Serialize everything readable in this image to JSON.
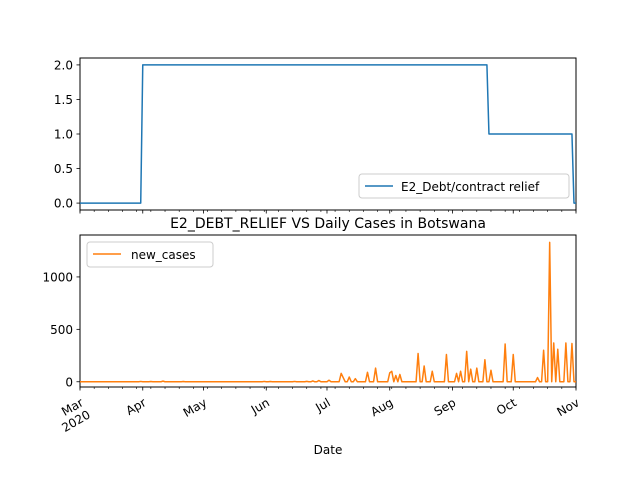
{
  "chart_data": [
    {
      "type": "line",
      "title": "",
      "xlabel": "",
      "ylabel": "",
      "ylim": [
        -0.1,
        2.1
      ],
      "yticks": [
        "0.0",
        "0.5",
        "1.0",
        "1.5",
        "2.0"
      ],
      "legend": "lower-right",
      "series": [
        {
          "name": "E2_Debt/contract relief",
          "color": "#1f77b4",
          "points": [
            [
              "2020-03-01",
              0
            ],
            [
              "2020-03-31",
              0
            ],
            [
              "2020-04-01",
              2
            ],
            [
              "2020-09-18",
              2
            ],
            [
              "2020-09-19",
              1
            ],
            [
              "2020-10-30",
              1
            ],
            [
              "2020-10-31",
              0
            ],
            [
              "2020-11-01",
              0
            ]
          ]
        }
      ]
    },
    {
      "type": "line",
      "title": "E2_DEBT_RELIEF VS Daily Cases in Botswana",
      "xlabel": "Date",
      "ylabel": "",
      "ylim": [
        -50,
        1400
      ],
      "yticks": [
        "0",
        "500",
        "1000"
      ],
      "legend": "upper-left",
      "xticks": [
        "Mar\n2020",
        "Apr",
        "May",
        "Jun",
        "Jul",
        "Aug",
        "Sep",
        "Oct",
        "Nov"
      ],
      "series": [
        {
          "name": "new_cases",
          "color": "#ff7f0e",
          "points": [
            [
              "2020-03-01",
              0
            ],
            [
              "2020-03-30",
              0
            ],
            [
              "2020-03-31",
              3
            ],
            [
              "2020-04-01",
              0
            ],
            [
              "2020-04-04",
              0
            ],
            [
              "2020-04-05",
              2
            ],
            [
              "2020-04-06",
              0
            ],
            [
              "2020-04-10",
              0
            ],
            [
              "2020-04-11",
              6
            ],
            [
              "2020-04-12",
              0
            ],
            [
              "2020-04-20",
              0
            ],
            [
              "2020-04-21",
              2
            ],
            [
              "2020-04-22",
              0
            ],
            [
              "2020-05-30",
              0
            ],
            [
              "2020-05-31",
              3
            ],
            [
              "2020-06-01",
              0
            ],
            [
              "2020-06-02",
              0
            ],
            [
              "2020-06-03",
              2
            ],
            [
              "2020-06-04",
              0
            ],
            [
              "2020-06-14",
              0
            ],
            [
              "2020-06-15",
              3
            ],
            [
              "2020-06-16",
              0
            ],
            [
              "2020-06-20",
              0
            ],
            [
              "2020-06-21",
              4
            ],
            [
              "2020-06-22",
              0
            ],
            [
              "2020-06-23",
              0
            ],
            [
              "2020-06-24",
              8
            ],
            [
              "2020-06-25",
              0
            ],
            [
              "2020-06-26",
              0
            ],
            [
              "2020-06-27",
              12
            ],
            [
              "2020-06-28",
              0
            ],
            [
              "2020-07-01",
              0
            ],
            [
              "2020-07-02",
              15
            ],
            [
              "2020-07-03",
              0
            ],
            [
              "2020-07-07",
              0
            ],
            [
              "2020-07-08",
              80
            ],
            [
              "2020-07-09",
              40
            ],
            [
              "2020-07-10",
              0
            ],
            [
              "2020-07-11",
              0
            ],
            [
              "2020-07-12",
              45
            ],
            [
              "2020-07-13",
              0
            ],
            [
              "2020-07-14",
              0
            ],
            [
              "2020-07-15",
              30
            ],
            [
              "2020-07-16",
              0
            ],
            [
              "2020-07-20",
              0
            ],
            [
              "2020-07-21",
              90
            ],
            [
              "2020-07-22",
              0
            ],
            [
              "2020-07-24",
              0
            ],
            [
              "2020-07-25",
              130
            ],
            [
              "2020-07-26",
              0
            ],
            [
              "2020-07-31",
              0
            ],
            [
              "2020-08-01",
              85
            ],
            [
              "2020-08-02",
              100
            ],
            [
              "2020-08-03",
              0
            ],
            [
              "2020-08-04",
              60
            ],
            [
              "2020-08-05",
              0
            ],
            [
              "2020-08-06",
              70
            ],
            [
              "2020-08-07",
              0
            ],
            [
              "2020-08-14",
              0
            ],
            [
              "2020-08-15",
              270
            ],
            [
              "2020-08-16",
              0
            ],
            [
              "2020-08-17",
              0
            ],
            [
              "2020-08-18",
              150
            ],
            [
              "2020-08-19",
              0
            ],
            [
              "2020-08-21",
              0
            ],
            [
              "2020-08-22",
              100
            ],
            [
              "2020-08-23",
              0
            ],
            [
              "2020-08-28",
              0
            ],
            [
              "2020-08-29",
              260
            ],
            [
              "2020-08-30",
              0
            ],
            [
              "2020-09-02",
              0
            ],
            [
              "2020-09-03",
              80
            ],
            [
              "2020-09-04",
              0
            ],
            [
              "2020-09-05",
              100
            ],
            [
              "2020-09-06",
              0
            ],
            [
              "2020-09-07",
              0
            ],
            [
              "2020-09-08",
              290
            ],
            [
              "2020-09-09",
              0
            ],
            [
              "2020-09-10",
              120
            ],
            [
              "2020-09-11",
              0
            ],
            [
              "2020-09-12",
              0
            ],
            [
              "2020-09-13",
              130
            ],
            [
              "2020-09-14",
              0
            ],
            [
              "2020-09-16",
              0
            ],
            [
              "2020-09-17",
              210
            ],
            [
              "2020-09-18",
              0
            ],
            [
              "2020-09-19",
              0
            ],
            [
              "2020-09-20",
              110
            ],
            [
              "2020-09-21",
              0
            ],
            [
              "2020-09-26",
              0
            ],
            [
              "2020-09-27",
              360
            ],
            [
              "2020-09-28",
              0
            ],
            [
              "2020-09-30",
              0
            ],
            [
              "2020-10-01",
              260
            ],
            [
              "2020-10-02",
              0
            ],
            [
              "2020-10-12",
              0
            ],
            [
              "2020-10-13",
              40
            ],
            [
              "2020-10-14",
              0
            ],
            [
              "2020-10-15",
              0
            ],
            [
              "2020-10-16",
              300
            ],
            [
              "2020-10-17",
              0
            ],
            [
              "2020-10-18",
              0
            ],
            [
              "2020-10-19",
              1330
            ],
            [
              "2020-10-20",
              0
            ],
            [
              "2020-10-21",
              370
            ],
            [
              "2020-10-22",
              0
            ],
            [
              "2020-10-23",
              310
            ],
            [
              "2020-10-24",
              0
            ],
            [
              "2020-10-26",
              0
            ],
            [
              "2020-10-27",
              370
            ],
            [
              "2020-10-28",
              0
            ],
            [
              "2020-10-29",
              0
            ],
            [
              "2020-10-30",
              365
            ],
            [
              "2020-10-31",
              0
            ],
            [
              "2020-11-01",
              0
            ]
          ]
        }
      ]
    }
  ]
}
